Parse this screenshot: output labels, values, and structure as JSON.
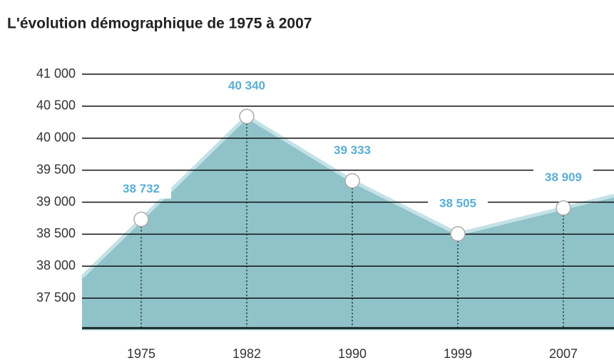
{
  "chart_data": {
    "type": "area",
    "title": "L'évolution démographique de 1975 à 2007",
    "categories": [
      "1975",
      "1982",
      "1990",
      "1999",
      "2007"
    ],
    "values": [
      38732,
      40340,
      39333,
      38505,
      38909
    ],
    "value_labels": [
      "38 732",
      "40 340",
      "39 333",
      "38 505",
      "38 909"
    ],
    "color": "#8fc3c9",
    "ylim": [
      37000,
      41000
    ],
    "yticks": [
      {
        "value": 37500,
        "label": "37 500"
      },
      {
        "value": 38000,
        "label": "38 000"
      },
      {
        "value": 38500,
        "label": "38 500"
      },
      {
        "value": 39000,
        "label": "39 000"
      },
      {
        "value": 39500,
        "label": "39 500"
      },
      {
        "value": 40000,
        "label": "40 000"
      },
      {
        "value": 40500,
        "label": "40 500"
      },
      {
        "value": 41000,
        "label": "41 000"
      }
    ],
    "grid": true
  }
}
